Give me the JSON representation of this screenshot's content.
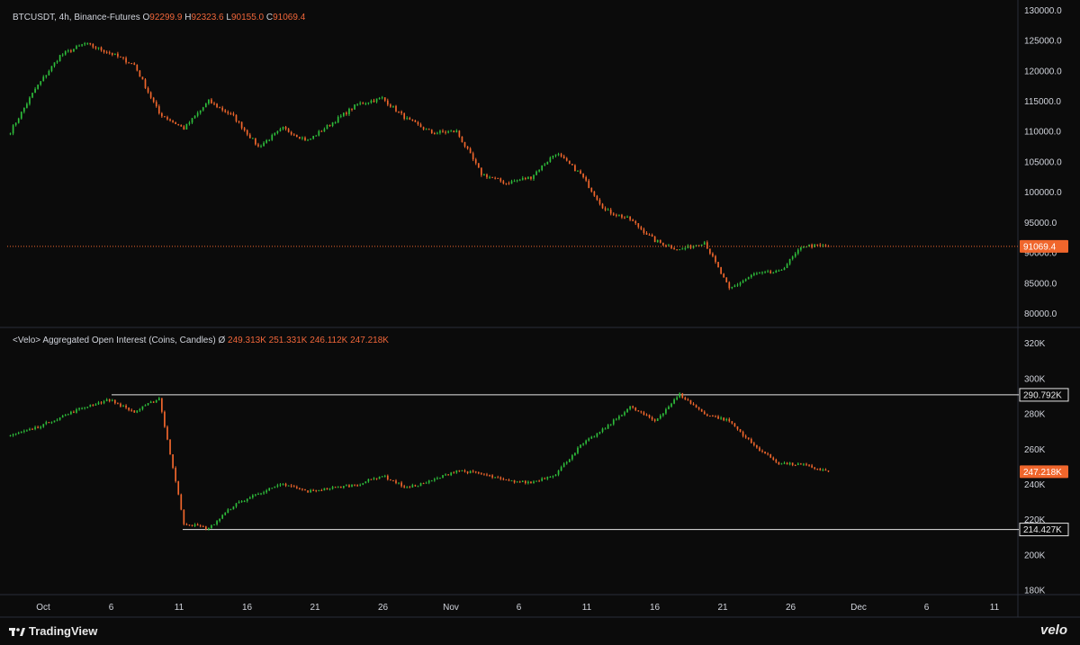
{
  "price_pane": {
    "symbol": "BTCUSDT, 4h, Binance-Futures",
    "o_label": "O",
    "o_value": "92299.9",
    "h_label": "H",
    "h_value": "92323.6",
    "l_label": "L",
    "l_value": "90155.0",
    "c_label": "C",
    "c_value": "91069.4",
    "last_price_tag": "91069.4"
  },
  "oi_pane": {
    "title": "<Velo> Aggregated Open Interest (Coins, Candles)",
    "symbol": "Ø",
    "values": [
      "249.313K",
      "251.331K",
      "246.112K",
      "247.218K"
    ],
    "last_tag": "247.218K",
    "upper_line_tag": "290.792K",
    "lower_line_tag": "214.427K"
  },
  "footer": {
    "platform": "TradingView",
    "brand": "velo"
  },
  "colors": {
    "up": "#2ebd3b",
    "down": "#f0662c",
    "background": "#0b0b0b",
    "grid_text": "#d1d4dc",
    "last_tag_bg": "#f0662c"
  },
  "chart_data": [
    {
      "type": "candlestick",
      "title": "BTCUSDT, 4h, Binance-Futures",
      "y_ticks": [
        "130000.0",
        "125000.0",
        "120000.0",
        "115000.0",
        "110000.0",
        "105000.0",
        "100000.0",
        "95000.0",
        "90000.0",
        "85000.0",
        "80000.0"
      ],
      "ylim": [
        78000,
        130500
      ],
      "x_ticks": [
        "Oct",
        "6",
        "11",
        "16",
        "21",
        "26",
        "Nov",
        "6",
        "11",
        "16",
        "21",
        "26",
        "Dec",
        "6",
        "11"
      ],
      "last_close": 91069.4,
      "series": [
        {
          "name": "BTCUSDT",
          "x": [
            "Oct 1",
            "Oct 3",
            "Oct 5",
            "Oct 6",
            "Oct 8",
            "Oct 10",
            "Oct 10b",
            "Oct 11",
            "Oct 13",
            "Oct 15",
            "Oct 17",
            "Oct 19",
            "Oct 21",
            "Oct 23",
            "Oct 25",
            "Oct 27",
            "Oct 29",
            "Oct 31",
            "Nov 2",
            "Nov 4",
            "Nov 6",
            "Nov 8",
            "Nov 10",
            "Nov 12",
            "Nov 14",
            "Nov 16",
            "Nov 18",
            "Nov 20",
            "Nov 21",
            "Nov 22",
            "Nov 24",
            "Nov 26",
            "Nov 27",
            "Nov 28"
          ],
          "close": [
            110000,
            117000,
            122500,
            124500,
            123000,
            121000,
            113000,
            110500,
            115000,
            112500,
            107500,
            110500,
            108500,
            111500,
            114500,
            115500,
            112000,
            109800,
            110000,
            103000,
            101500,
            102500,
            106500,
            103000,
            97000,
            95500,
            92000,
            90500,
            91800,
            84000,
            86500,
            86800,
            91200,
            91069.4
          ]
        }
      ]
    },
    {
      "type": "candlestick",
      "title": "<Velo> Aggregated Open Interest (Coins, Candles)",
      "y_ticks": [
        "320K",
        "300K",
        "280K",
        "260K",
        "240K",
        "220K",
        "200K",
        "180K"
      ],
      "ylim": [
        178000,
        328000
      ],
      "x_ticks": [
        "Oct",
        "6",
        "11",
        "16",
        "21",
        "26",
        "Nov",
        "6",
        "11",
        "16",
        "21",
        "26",
        "Dec",
        "6",
        "11"
      ],
      "horizontal_lines": [
        290792,
        214427
      ],
      "last_close": 247218,
      "series": [
        {
          "name": "Aggregated Open Interest",
          "x": [
            "Oct 1",
            "Oct 3",
            "Oct 5",
            "Oct 6",
            "Oct 8",
            "Oct 10",
            "Oct 10b",
            "Oct 11",
            "Oct 13",
            "Oct 15",
            "Oct 17",
            "Oct 19",
            "Oct 21",
            "Oct 23",
            "Oct 25",
            "Oct 27",
            "Oct 29",
            "Oct 31",
            "Nov 2",
            "Nov 4",
            "Nov 6",
            "Nov 8",
            "Nov 10",
            "Nov 12",
            "Nov 14",
            "Nov 16",
            "Nov 18",
            "Nov 20",
            "Nov 21",
            "Nov 22",
            "Nov 24",
            "Nov 26",
            "Nov 27",
            "Nov 28"
          ],
          "close": [
            268000,
            272000,
            278000,
            284000,
            288000,
            281000,
            289000,
            218000,
            215000,
            228000,
            235000,
            240000,
            236000,
            238000,
            240000,
            245000,
            238000,
            242000,
            248000,
            246000,
            242000,
            241000,
            246000,
            262000,
            272000,
            284000,
            276000,
            291000,
            280000,
            276000,
            262000,
            252000,
            251000,
            247218
          ]
        }
      ]
    }
  ]
}
